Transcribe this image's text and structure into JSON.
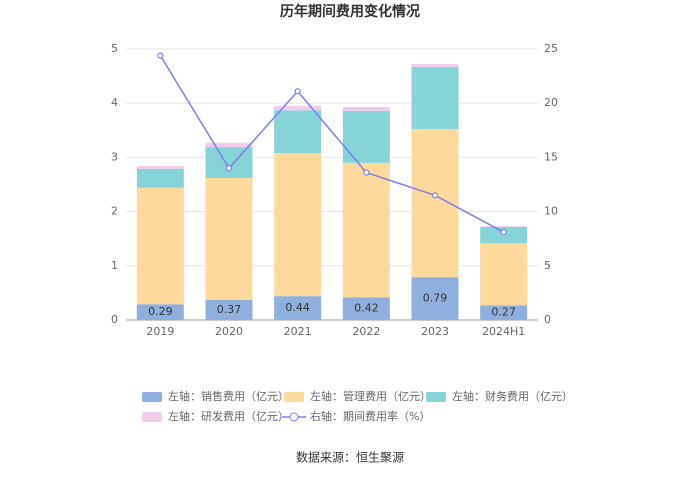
{
  "chart_data": {
    "type": "bar",
    "title": "历年期间费用变化情况",
    "categories": [
      "2019",
      "2020",
      "2021",
      "2022",
      "2023",
      "2024H1"
    ],
    "series": [
      {
        "name": "左轴：销售费用（亿元）",
        "color": "#8fb0de",
        "values": [
          0.29,
          0.37,
          0.44,
          0.42,
          0.79,
          0.27
        ]
      },
      {
        "name": "左轴：管理费用（亿元）",
        "color": "#fdd99b",
        "values": [
          2.15,
          2.25,
          2.64,
          2.48,
          2.73,
          1.15
        ]
      },
      {
        "name": "左轴：财务费用（亿元）",
        "color": "#86d4d8",
        "values": [
          0.35,
          0.57,
          0.79,
          0.96,
          1.15,
          0.3
        ]
      },
      {
        "name": "左轴：研发费用（亿元）",
        "color": "#f1cbe9",
        "values": [
          0.05,
          0.08,
          0.08,
          0.07,
          0.05,
          0.01
        ]
      },
      {
        "name": "右轴：期间费用率（%）",
        "color": "#7b7ff0",
        "type": "line",
        "axis": "y2",
        "values": [
          24.4,
          14.0,
          21.1,
          13.6,
          11.5,
          8.1
        ]
      }
    ],
    "ylim": [
      0,
      5
    ],
    "yticks": [
      0,
      1,
      2,
      3,
      4,
      5
    ],
    "y2lim": [
      0,
      25
    ],
    "y2ticks": [
      0,
      5,
      10,
      15,
      20,
      25
    ],
    "grid": true,
    "source": "数据来源：恒生聚源"
  }
}
